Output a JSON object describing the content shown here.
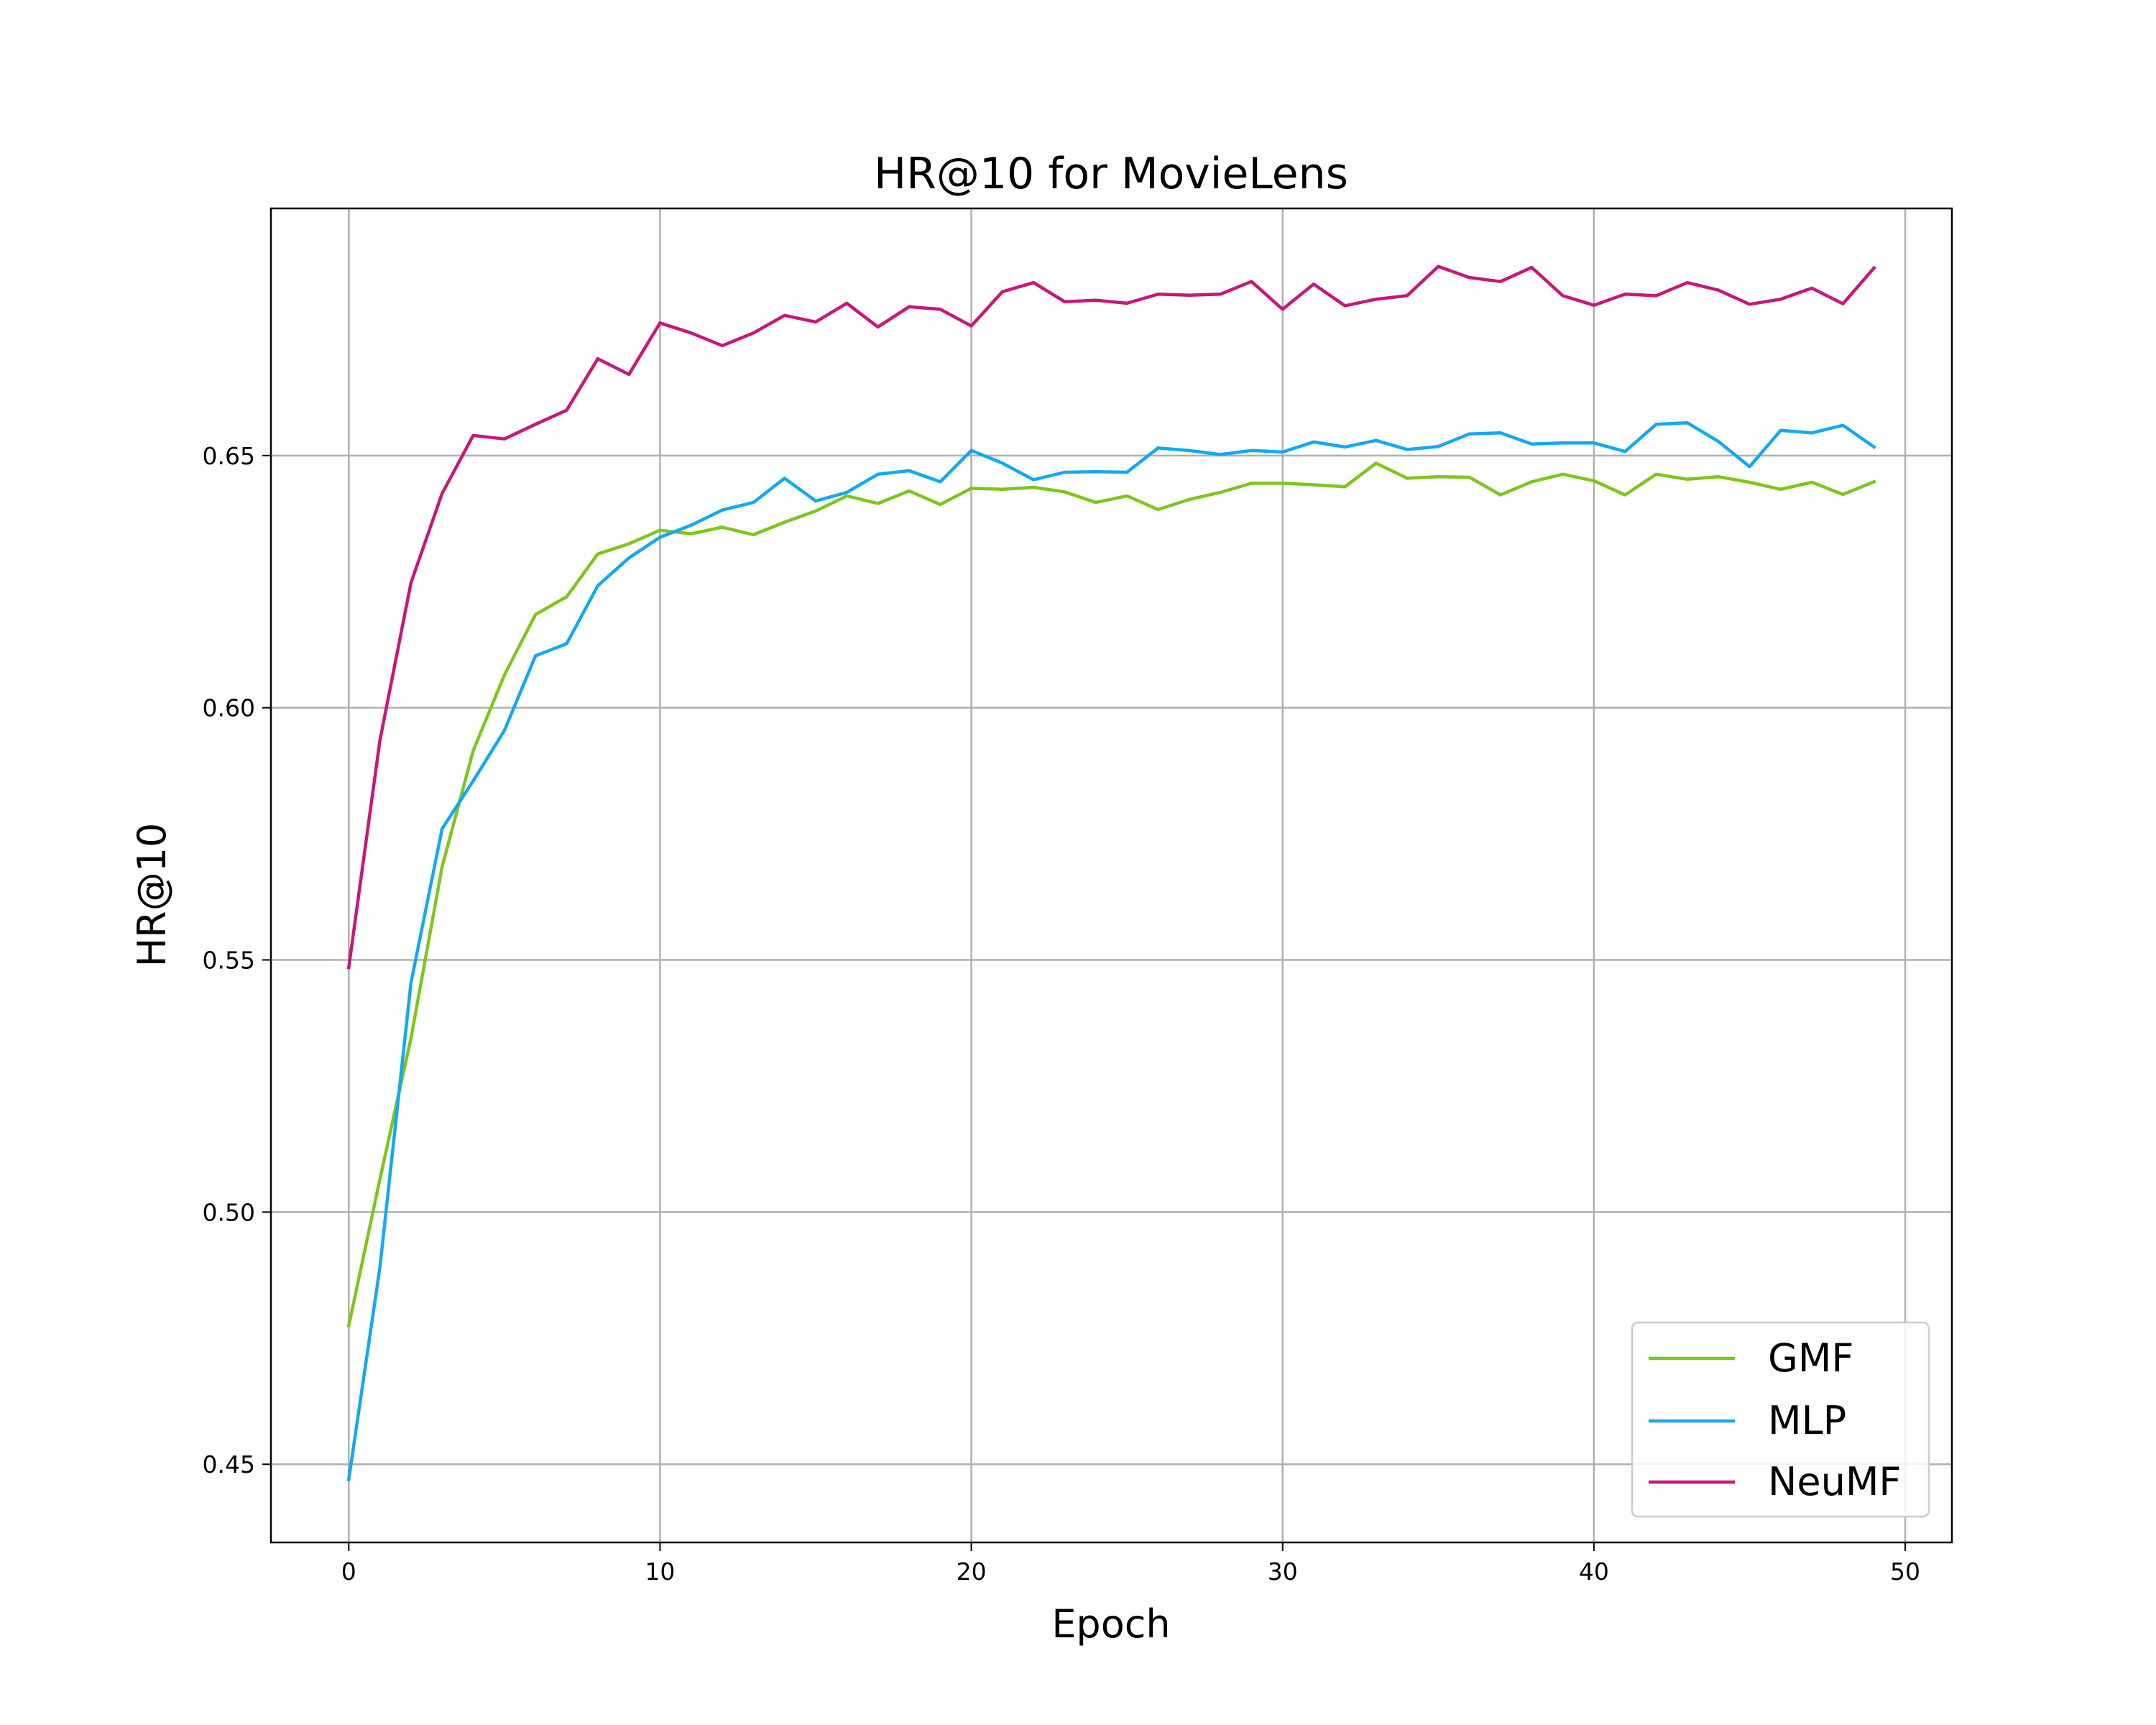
{
  "chart_data": {
    "type": "line",
    "title": "HR@10 for MovieLens",
    "xlabel": "Epoch",
    "ylabel": "HR@10",
    "xlim": [
      -2.5,
      51.5
    ],
    "ylim": [
      0.4345,
      0.699
    ],
    "xticks": [
      0,
      10,
      20,
      30,
      40,
      50
    ],
    "xtick_labels": [
      "0",
      "10",
      "20",
      "30",
      "40",
      "50"
    ],
    "yticks": [
      0.45,
      0.5,
      0.55,
      0.6,
      0.65
    ],
    "ytick_labels": [
      "0.45",
      "0.50",
      "0.55",
      "0.60",
      "0.65"
    ],
    "grid": true,
    "legend_position": "lower-right",
    "x": [
      0,
      1,
      2,
      3,
      4,
      5,
      6,
      7,
      8,
      9,
      10,
      11,
      12,
      13,
      14,
      15,
      16,
      17,
      18,
      19,
      20,
      21,
      22,
      23,
      24,
      25,
      26,
      27,
      28,
      29,
      30,
      31,
      32,
      33,
      34,
      35,
      36,
      37,
      38,
      39,
      40,
      41,
      42,
      43,
      44,
      45,
      46,
      47,
      48,
      49
    ],
    "series": [
      {
        "name": "GMF",
        "color": "#7ec61c",
        "values": [
          0.4775,
          0.5065,
          0.5345,
          0.5685,
          0.5915,
          0.6065,
          0.6185,
          0.622,
          0.6305,
          0.6325,
          0.6352,
          0.6345,
          0.6358,
          0.6343,
          0.6368,
          0.639,
          0.642,
          0.6405,
          0.643,
          0.6403,
          0.6435,
          0.6433,
          0.6437,
          0.6428,
          0.6407,
          0.642,
          0.6393,
          0.6413,
          0.6427,
          0.6445,
          0.6445,
          0.6442,
          0.6438,
          0.6485,
          0.6455,
          0.6458,
          0.6457,
          0.6422,
          0.6448,
          0.6463,
          0.645,
          0.6422,
          0.6463,
          0.6453,
          0.6458,
          0.6447,
          0.6433,
          0.6447,
          0.6423,
          0.6448
        ]
      },
      {
        "name": "MLP",
        "color": "#13a8f4",
        "values": [
          0.447,
          0.489,
          0.5455,
          0.576,
          0.5855,
          0.5955,
          0.6103,
          0.6127,
          0.6242,
          0.6297,
          0.6338,
          0.6362,
          0.6392,
          0.6407,
          0.6455,
          0.641,
          0.6427,
          0.6463,
          0.647,
          0.6448,
          0.651,
          0.6485,
          0.6452,
          0.6467,
          0.6468,
          0.6467,
          0.6515,
          0.651,
          0.6502,
          0.651,
          0.6507,
          0.6527,
          0.6517,
          0.653,
          0.6512,
          0.6518,
          0.6543,
          0.6545,
          0.6523,
          0.6525,
          0.6525,
          0.6508,
          0.6562,
          0.6565,
          0.6528,
          0.6478,
          0.655,
          0.6545,
          0.656,
          0.6517
        ]
      },
      {
        "name": "NeuMF",
        "color": "#c8167b",
        "values": [
          0.5485,
          0.5935,
          0.6248,
          0.6425,
          0.654,
          0.6533,
          0.6562,
          0.659,
          0.6692,
          0.6661,
          0.6763,
          0.6743,
          0.6718,
          0.6743,
          0.6778,
          0.6765,
          0.6802,
          0.6755,
          0.6795,
          0.679,
          0.6757,
          0.6825,
          0.6843,
          0.6805,
          0.6808,
          0.6802,
          0.682,
          0.6818,
          0.682,
          0.6845,
          0.679,
          0.684,
          0.6797,
          0.681,
          0.6817,
          0.6875,
          0.6853,
          0.6845,
          0.6873,
          0.6817,
          0.6798,
          0.682,
          0.6817,
          0.6843,
          0.6828,
          0.68,
          0.681,
          0.6832,
          0.6801,
          0.6872
        ]
      }
    ]
  }
}
